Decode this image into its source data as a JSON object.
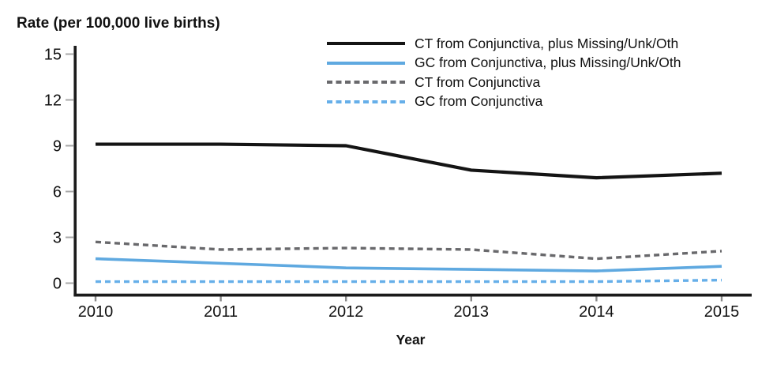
{
  "chart_data": {
    "type": "line",
    "title": "Rate (per 100,000 live births)",
    "xlabel": "Year",
    "ylabel": "",
    "x": [
      2010,
      2011,
      2012,
      2013,
      2014,
      2015
    ],
    "series": [
      {
        "name": "CT from Conjunctiva, plus Missing/Unk/Oth",
        "values": [
          9.1,
          9.1,
          9.0,
          7.4,
          6.9,
          7.2
        ],
        "color": "#141414",
        "style": "solid",
        "width": 4.2
      },
      {
        "name": "GC from Conjunctiva, plus Missing/Unk/Oth",
        "values": [
          1.6,
          1.3,
          1.0,
          0.9,
          0.8,
          1.1
        ],
        "color": "#5FA9E0",
        "style": "solid",
        "width": 3.6
      },
      {
        "name": "CT from Conjunctiva",
        "values": [
          2.7,
          2.2,
          2.3,
          2.2,
          1.6,
          2.1
        ],
        "color": "#69696C",
        "style": "dashed",
        "width": 3.4
      },
      {
        "name": "GC from Conjunctiva",
        "values": [
          0.1,
          0.1,
          0.1,
          0.1,
          0.1,
          0.2
        ],
        "color": "#66AFE9",
        "style": "dashed",
        "width": 3.4
      }
    ],
    "ylim": [
      0,
      15
    ],
    "yticks": [
      0,
      3,
      6,
      9,
      12,
      15
    ],
    "grid": false,
    "legend_position": "top-right",
    "axis_color": "#1a1a1a",
    "y_tick_color": "#a8a8a8",
    "x_tick_color": "#8a8a8a"
  }
}
